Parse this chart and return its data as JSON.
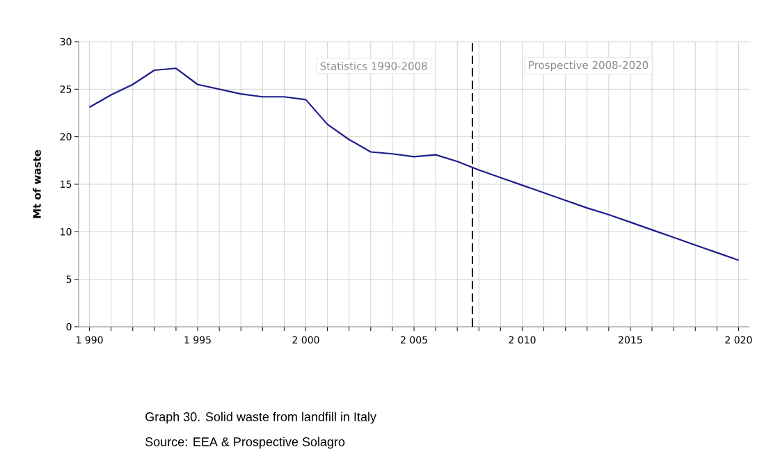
{
  "chart_data": {
    "type": "line",
    "ylabel": "Mt of waste",
    "annotations": [
      "Statistics 1990-2008",
      "Prospective 2008-2020",
      "Graph 30. Solid waste from landfill in Italy",
      "Source: EEA & Prospective Solagro"
    ],
    "x": [
      1990,
      1991,
      1992,
      1993,
      1994,
      1995,
      1996,
      1997,
      1998,
      1999,
      2000,
      2001,
      2002,
      2003,
      2004,
      2005,
      2006,
      2007,
      2008,
      2009,
      2010,
      2011,
      2012,
      2013,
      2014,
      2015,
      2016,
      2017,
      2018,
      2019,
      2020
    ],
    "values": [
      23.1,
      24.4,
      25.5,
      27.0,
      27.2,
      25.5,
      25.0,
      24.5,
      24.2,
      24.2,
      23.9,
      21.3,
      19.7,
      18.4,
      18.2,
      17.9,
      18.1,
      17.4,
      16.5,
      15.7,
      14.9,
      14.1,
      13.3,
      12.5,
      11.8,
      11.0,
      10.2,
      9.4,
      8.6,
      7.8,
      7.0
    ],
    "color": "#1c1c8a",
    "xlim": [
      1989.5,
      2020.5
    ],
    "xticks": [
      {
        "value": 1990,
        "label": "1 990"
      },
      {
        "value": 1991,
        "label": null
      },
      {
        "value": 1992,
        "label": null
      },
      {
        "value": 1993,
        "label": null
      },
      {
        "value": 1994,
        "label": null
      },
      {
        "value": 1995,
        "label": "1 995"
      },
      {
        "value": 1996,
        "label": null
      },
      {
        "value": 1997,
        "label": null
      },
      {
        "value": 1998,
        "label": null
      },
      {
        "value": 1999,
        "label": null
      },
      {
        "value": 2000,
        "label": "2 000"
      },
      {
        "value": 2001,
        "label": null
      },
      {
        "value": 2002,
        "label": null
      },
      {
        "value": 2003,
        "label": null
      },
      {
        "value": 2004,
        "label": null
      },
      {
        "value": 2005,
        "label": "2 005"
      },
      {
        "value": 2006,
        "label": null
      },
      {
        "value": 2007,
        "label": null
      },
      {
        "value": 2008,
        "label": null
      },
      {
        "value": 2009,
        "label": null
      },
      {
        "value": 2010,
        "label": "2 010"
      },
      {
        "value": 2011,
        "label": null
      },
      {
        "value": 2012,
        "label": null
      },
      {
        "value": 2013,
        "label": null
      },
      {
        "value": 2014,
        "label": null
      },
      {
        "value": 2015,
        "label": "2015"
      },
      {
        "value": 2016,
        "label": null
      },
      {
        "value": 2017,
        "label": null
      },
      {
        "value": 2018,
        "label": null
      },
      {
        "value": 2019,
        "label": null
      },
      {
        "value": 2020,
        "label": "2 020"
      }
    ],
    "ylim": [
      0,
      30
    ],
    "yticks": [
      0,
      5,
      10,
      15,
      20,
      25,
      30
    ],
    "grid": true,
    "line_style": "solid",
    "ref_lines": [
      {
        "axis": "x",
        "value": 2007.7,
        "color": "#000000",
        "line_style": "dashed"
      }
    ]
  }
}
